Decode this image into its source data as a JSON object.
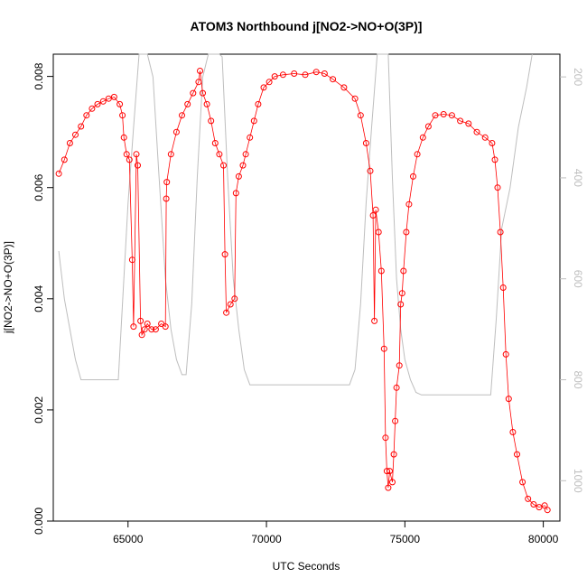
{
  "chart_data": {
    "type": "scatter",
    "title": "ATOM3 Northbound j[NO2->NO+O(3P)]",
    "xlabel": "UTC Seconds",
    "ylabel": "j[NO2->NO+O(3P)]",
    "xlim": [
      62300,
      80600
    ],
    "ylim": [
      0.0,
      0.0084
    ],
    "y2lim": [
      1080,
      155
    ],
    "x_ticks": [
      65000,
      70000,
      75000,
      80000
    ],
    "y_ticks": [
      0.0,
      0.002,
      0.004,
      0.006,
      0.008
    ],
    "y2_ticks": [
      200,
      400,
      600,
      800,
      1000
    ],
    "x_tick_labels": [
      "65000",
      "70000",
      "75000",
      "80000"
    ],
    "y_tick_labels": [
      "0.000",
      "0.002",
      "0.004",
      "0.006",
      "0.008"
    ],
    "y2_tick_labels": [
      "200",
      "400",
      "600",
      "800",
      "1000"
    ],
    "colors": {
      "series": "#ff0000",
      "secondary": "#bebebe",
      "axis": "#000000"
    },
    "series": [
      {
        "axis": "left",
        "style": "points-with-lines",
        "points": [
          [
            62500,
            0.00625
          ],
          [
            62700,
            0.0065
          ],
          [
            62900,
            0.0068
          ],
          [
            63100,
            0.00695
          ],
          [
            63300,
            0.0071
          ],
          [
            63500,
            0.0073
          ],
          [
            63700,
            0.00742
          ],
          [
            63900,
            0.0075
          ],
          [
            64100,
            0.00755
          ],
          [
            64300,
            0.0076
          ],
          [
            64500,
            0.00763
          ],
          [
            64700,
            0.0075
          ],
          [
            64800,
            0.0073
          ],
          [
            64850,
            0.0069
          ],
          [
            64950,
            0.0066
          ],
          [
            65050,
            0.0065
          ],
          [
            65150,
            0.0047
          ],
          [
            65200,
            0.0035
          ],
          [
            65300,
            0.0066
          ],
          [
            65350,
            0.0064
          ],
          [
            65450,
            0.0036
          ],
          [
            65500,
            0.00335
          ],
          [
            65600,
            0.00345
          ],
          [
            65700,
            0.00355
          ],
          [
            65850,
            0.00345
          ],
          [
            66000,
            0.00345
          ],
          [
            66200,
            0.00355
          ],
          [
            66350,
            0.0035
          ],
          [
            66380,
            0.0058
          ],
          [
            66400,
            0.0061
          ],
          [
            66550,
            0.0066
          ],
          [
            66750,
            0.007
          ],
          [
            66950,
            0.0073
          ],
          [
            67150,
            0.0075
          ],
          [
            67350,
            0.0077
          ],
          [
            67550,
            0.0079
          ],
          [
            67600,
            0.0081
          ],
          [
            67700,
            0.0077
          ],
          [
            67850,
            0.0075
          ],
          [
            68000,
            0.0072
          ],
          [
            68150,
            0.0068
          ],
          [
            68300,
            0.0066
          ],
          [
            68450,
            0.0064
          ],
          [
            68500,
            0.0048
          ],
          [
            68550,
            0.00375
          ],
          [
            68700,
            0.0039
          ],
          [
            68850,
            0.004
          ],
          [
            68900,
            0.0059
          ],
          [
            69000,
            0.0062
          ],
          [
            69150,
            0.0064
          ],
          [
            69250,
            0.0066
          ],
          [
            69400,
            0.0069
          ],
          [
            69550,
            0.0072
          ],
          [
            69700,
            0.0075
          ],
          [
            69900,
            0.0078
          ],
          [
            70100,
            0.0079
          ],
          [
            70300,
            0.008
          ],
          [
            70600,
            0.00803
          ],
          [
            71000,
            0.00805
          ],
          [
            71400,
            0.00803
          ],
          [
            71800,
            0.00808
          ],
          [
            72100,
            0.00805
          ],
          [
            72400,
            0.00795
          ],
          [
            72800,
            0.0078
          ],
          [
            73200,
            0.0076
          ],
          [
            73400,
            0.0073
          ],
          [
            73600,
            0.0068
          ],
          [
            73750,
            0.0063
          ],
          [
            73850,
            0.0055
          ],
          [
            73900,
            0.0036
          ],
          [
            73950,
            0.0056
          ],
          [
            74050,
            0.0052
          ],
          [
            74150,
            0.0045
          ],
          [
            74250,
            0.0031
          ],
          [
            74300,
            0.0015
          ],
          [
            74350,
            0.0009
          ],
          [
            74400,
            0.0006
          ],
          [
            74450,
            0.0009
          ],
          [
            74550,
            0.0007
          ],
          [
            74600,
            0.0012
          ],
          [
            74650,
            0.0018
          ],
          [
            74700,
            0.0024
          ],
          [
            74800,
            0.0028
          ],
          [
            74850,
            0.0039
          ],
          [
            74900,
            0.0041
          ],
          [
            74950,
            0.0045
          ],
          [
            75050,
            0.0052
          ],
          [
            75150,
            0.0057
          ],
          [
            75300,
            0.0062
          ],
          [
            75450,
            0.0066
          ],
          [
            75650,
            0.0069
          ],
          [
            75850,
            0.0071
          ],
          [
            76100,
            0.0073
          ],
          [
            76400,
            0.00732
          ],
          [
            76700,
            0.0073
          ],
          [
            77000,
            0.0072
          ],
          [
            77300,
            0.00715
          ],
          [
            77600,
            0.007
          ],
          [
            77900,
            0.0069
          ],
          [
            78150,
            0.0068
          ],
          [
            78250,
            0.0065
          ],
          [
            78350,
            0.006
          ],
          [
            78450,
            0.0052
          ],
          [
            78550,
            0.0042
          ],
          [
            78650,
            0.003
          ],
          [
            78750,
            0.0022
          ],
          [
            78900,
            0.0016
          ],
          [
            79050,
            0.0012
          ],
          [
            79250,
            0.0007
          ],
          [
            79450,
            0.0004
          ],
          [
            79650,
            0.0003
          ],
          [
            79850,
            0.00025
          ],
          [
            80050,
            0.00028
          ],
          [
            80150,
            0.0002
          ]
        ]
      },
      {
        "axis": "right",
        "style": "line",
        "points": [
          [
            62500,
            545
          ],
          [
            62700,
            640
          ],
          [
            62900,
            700
          ],
          [
            63100,
            760
          ],
          [
            63300,
            800
          ],
          [
            63500,
            800
          ],
          [
            63700,
            800
          ],
          [
            63900,
            800
          ],
          [
            64100,
            800
          ],
          [
            64300,
            800
          ],
          [
            64500,
            800
          ],
          [
            64650,
            800
          ],
          [
            64800,
            650
          ],
          [
            65000,
            450
          ],
          [
            65200,
            300
          ],
          [
            65400,
            155
          ],
          [
            65700,
            155
          ],
          [
            65900,
            200
          ],
          [
            66100,
            380
          ],
          [
            66350,
            600
          ],
          [
            66550,
            700
          ],
          [
            66750,
            760
          ],
          [
            66950,
            790
          ],
          [
            67100,
            790
          ],
          [
            67300,
            650
          ],
          [
            67500,
            400
          ],
          [
            67700,
            200
          ],
          [
            67900,
            155
          ],
          [
            68300,
            155
          ],
          [
            68400,
            160
          ],
          [
            68600,
            400
          ],
          [
            68800,
            600
          ],
          [
            69000,
            700
          ],
          [
            69200,
            780
          ],
          [
            69400,
            810
          ],
          [
            69600,
            810
          ],
          [
            70000,
            810
          ],
          [
            70800,
            810
          ],
          [
            71600,
            810
          ],
          [
            72400,
            810
          ],
          [
            73000,
            810
          ],
          [
            73200,
            780
          ],
          [
            73400,
            650
          ],
          [
            73600,
            450
          ],
          [
            73800,
            300
          ],
          [
            74000,
            155
          ],
          [
            74400,
            155
          ],
          [
            74550,
            400
          ],
          [
            74700,
            600
          ],
          [
            74850,
            700
          ],
          [
            75000,
            760
          ],
          [
            75200,
            800
          ],
          [
            75400,
            825
          ],
          [
            75600,
            830
          ],
          [
            76000,
            830
          ],
          [
            76800,
            830
          ],
          [
            77600,
            830
          ],
          [
            78100,
            830
          ],
          [
            78300,
            680
          ],
          [
            78500,
            500
          ],
          [
            78800,
            420
          ],
          [
            79100,
            300
          ],
          [
            79400,
            220
          ],
          [
            79600,
            155
          ]
        ]
      }
    ]
  }
}
